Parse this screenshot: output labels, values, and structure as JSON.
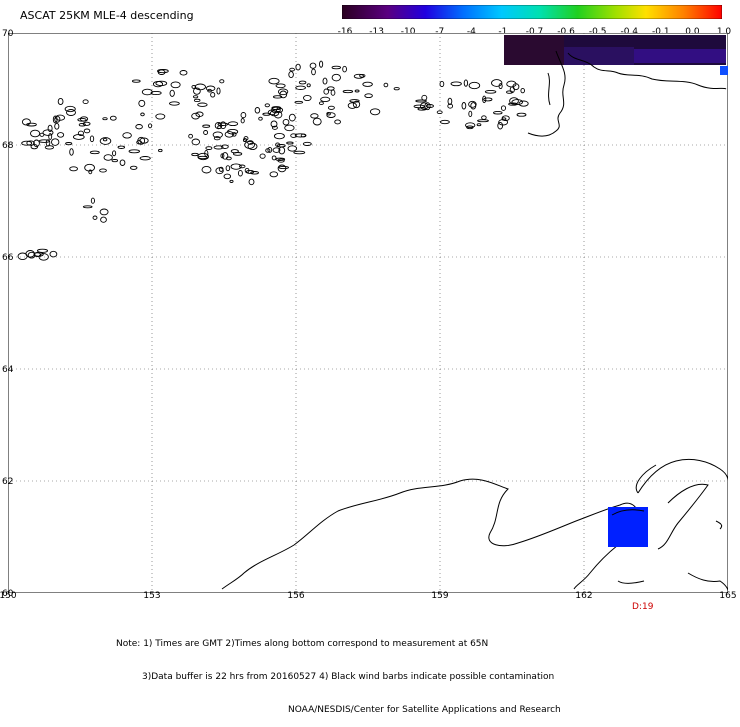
{
  "title": "ASCAT 25KM MLE-4 descending",
  "colorbar": {
    "labels": [
      "-16",
      "-13",
      "-10",
      "-7",
      "-4",
      "-1",
      "-0.7",
      "-0.6",
      "-0.5",
      "-0.4",
      "-0.1",
      "0.0",
      "1.0"
    ],
    "colors": [
      "#3a0030",
      "#4a0080",
      "#2000d0",
      "#0060ff",
      "#00b0ff",
      "#00e0c0",
      "#00d060",
      "#40d000",
      "#c0e000",
      "#ffd000",
      "#ff8000",
      "#ff3000",
      "#ff0000"
    ]
  },
  "map": {
    "lat_labels": [
      "70",
      "68",
      "66",
      "64",
      "62",
      "60"
    ],
    "lon_labels": [
      "150",
      "153",
      "156",
      "159",
      "162",
      "165"
    ],
    "grid": true,
    "land_outline_color": "#000000",
    "data_swath_color": "#1a0a3a",
    "marker_color": "#0020ff"
  },
  "data_tag": "D:19",
  "notes": [
    "Note: 1) Times are GMT 2)Times along bottom correspond to measurement at 65N",
    "3)Data buffer is 22 hrs from 20160527 4) Black wind barbs indicate possible contamination",
    "NOAA/NESDIS/Center for Satellite Applications and Research"
  ]
}
